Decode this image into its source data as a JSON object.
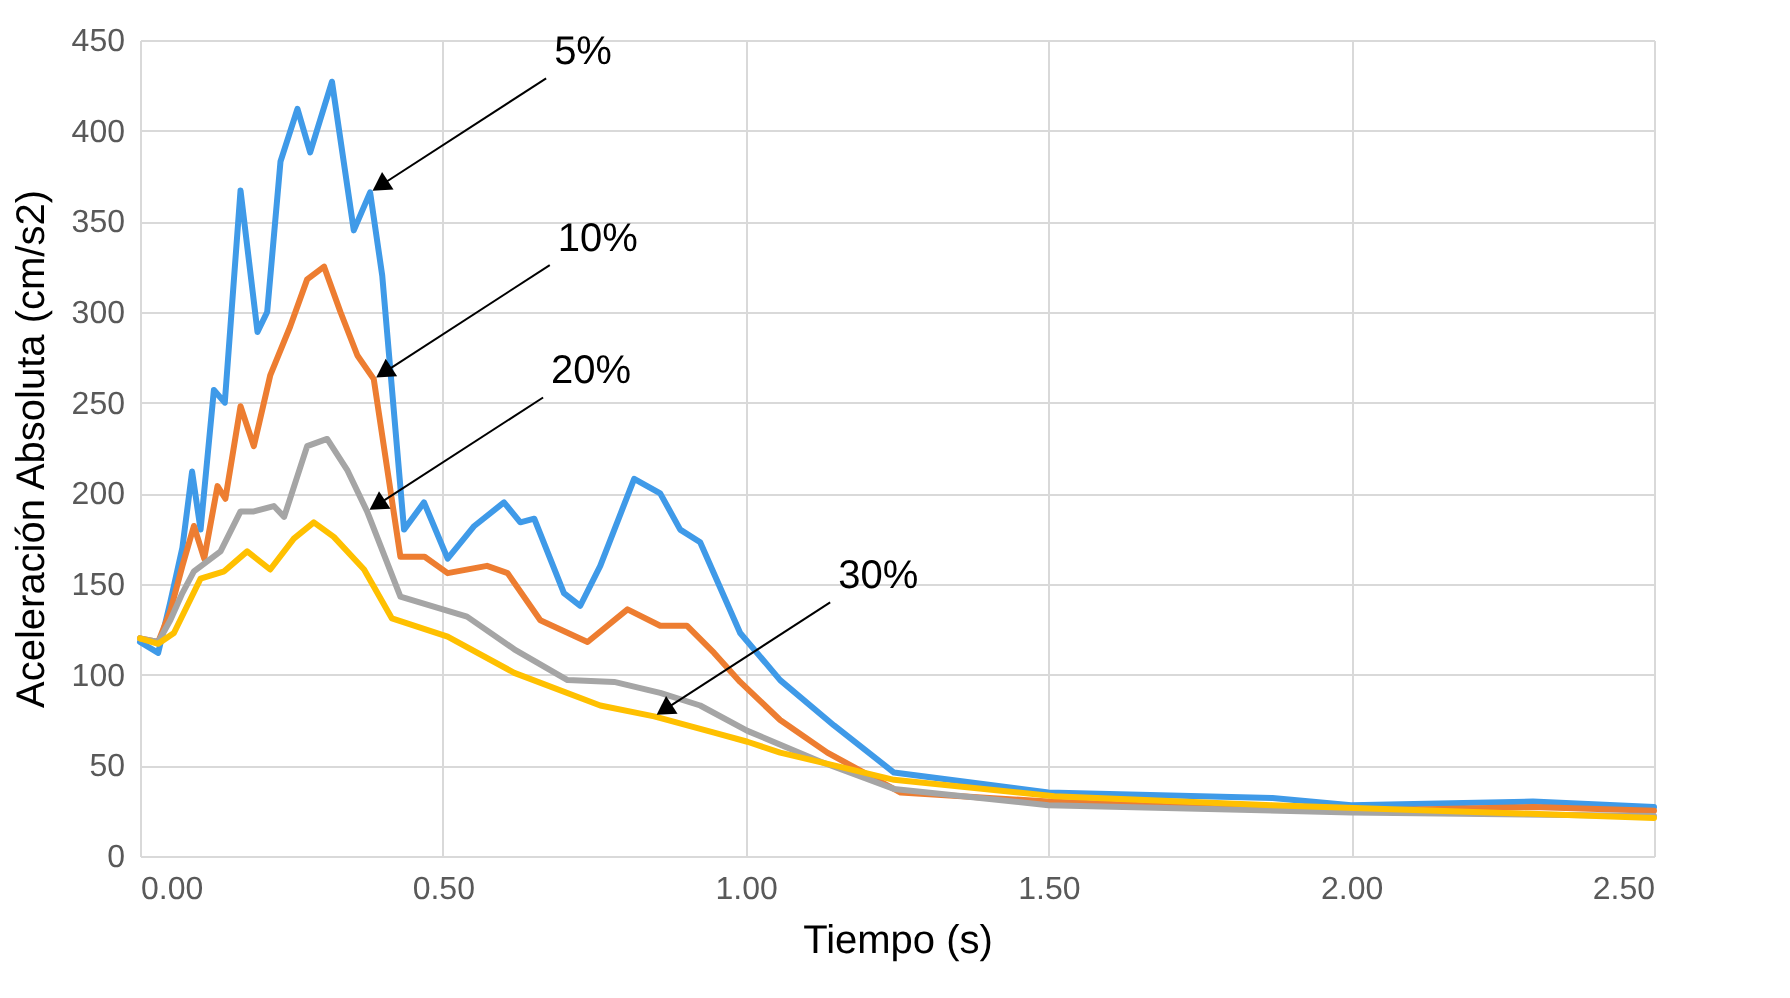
{
  "chart_data": {
    "type": "line",
    "xlabel": "Tiempo (s)",
    "ylabel": "Aceleración Absoluta (cm/s2)",
    "xlim": [
      0,
      2.5
    ],
    "ylim": [
      0,
      450
    ],
    "xticks": [
      {
        "value": 0,
        "label": "0.00"
      },
      {
        "value": 0.5,
        "label": "0.50"
      },
      {
        "value": 1,
        "label": "1.00"
      },
      {
        "value": 1.5,
        "label": "1.50"
      },
      {
        "value": 2,
        "label": "2.00"
      },
      {
        "value": 2.5,
        "label": "2.50"
      }
    ],
    "yticks": [
      0,
      50,
      100,
      150,
      200,
      250,
      300,
      350,
      400,
      450
    ],
    "grid": true,
    "legend": false,
    "marker": "none",
    "line_style": "solid",
    "series": [
      {
        "color": "#3f9ae8",
        "x": [
          0,
          0.03,
          0.05,
          0.07,
          0.086,
          0.1,
          0.122,
          0.14,
          0.166,
          0.194,
          0.21,
          0.232,
          0.26,
          0.281,
          0.317,
          0.353,
          0.38,
          0.4,
          0.436,
          0.469,
          0.508,
          0.552,
          0.601,
          0.628,
          0.651,
          0.7,
          0.727,
          0.76,
          0.816,
          0.859,
          0.892,
          0.925,
          0.991,
          1.057,
          1.146,
          1.245,
          1.5,
          1.87,
          2.0,
          2.3,
          2.5
        ],
        "values": [
          118,
          112,
          140,
          170,
          212,
          180,
          257,
          250,
          367,
          289,
          300,
          383,
          412,
          388,
          427,
          345,
          366,
          320,
          180,
          195,
          164,
          182,
          195,
          184,
          186,
          145,
          138,
          160,
          208,
          200,
          180,
          173,
          123,
          97,
          72,
          46,
          35,
          32,
          28,
          30,
          27
        ]
      },
      {
        "color": "#ed7d31",
        "x": [
          0,
          0.03,
          0.05,
          0.07,
          0.089,
          0.106,
          0.128,
          0.141,
          0.166,
          0.188,
          0.215,
          0.248,
          0.276,
          0.304,
          0.331,
          0.359,
          0.386,
          0.43,
          0.47,
          0.508,
          0.573,
          0.607,
          0.661,
          0.739,
          0.805,
          0.859,
          0.903,
          0.948,
          0.991,
          1.057,
          1.135,
          1.256,
          1.5,
          1.8,
          2.0,
          2.3,
          2.5
        ],
        "values": [
          120,
          118,
          135,
          160,
          182,
          164,
          204,
          197,
          248,
          226,
          265,
          292,
          318,
          325,
          300,
          276,
          263,
          165,
          165,
          156,
          160,
          156,
          130,
          118,
          136,
          127,
          127,
          112,
          96,
          75,
          57,
          35,
          30,
          26,
          25,
          27,
          25
        ]
      },
      {
        "color": "#a5a5a5",
        "x": [
          0,
          0.03,
          0.05,
          0.07,
          0.089,
          0.133,
          0.166,
          0.188,
          0.221,
          0.238,
          0.276,
          0.309,
          0.342,
          0.375,
          0.43,
          0.54,
          0.618,
          0.706,
          0.783,
          0.859,
          0.925,
          1.003,
          1.124,
          1.245,
          1.5,
          2.0,
          2.5
        ],
        "values": [
          120,
          118,
          130,
          145,
          157,
          168,
          190,
          190,
          193,
          187,
          226,
          230,
          213,
          190,
          143,
          132,
          114,
          97,
          96,
          90,
          83,
          69,
          52,
          37,
          28,
          24,
          22
        ]
      },
      {
        "color": "#ffc000",
        "x": [
          0,
          0.03,
          0.056,
          0.1,
          0.139,
          0.177,
          0.215,
          0.254,
          0.287,
          0.32,
          0.37,
          0.416,
          0.508,
          0.618,
          0.76,
          0.849,
          0.948,
          1.003,
          1.057,
          1.146,
          1.245,
          1.51,
          1.87,
          2.5
        ],
        "values": [
          120,
          117,
          123,
          153,
          157,
          168,
          158,
          175,
          184,
          176,
          158,
          131,
          121,
          101,
          83,
          77,
          68,
          63,
          57,
          50,
          42,
          33,
          28,
          21
        ]
      }
    ],
    "annotations": [
      {
        "text": "5%",
        "x": 0.38,
        "y": 366
      },
      {
        "text": "10%",
        "x": 0.386,
        "y": 263
      },
      {
        "text": "20%",
        "x": 0.375,
        "y": 190
      },
      {
        "text": "30%",
        "x": 0.849,
        "y": 77
      }
    ]
  }
}
